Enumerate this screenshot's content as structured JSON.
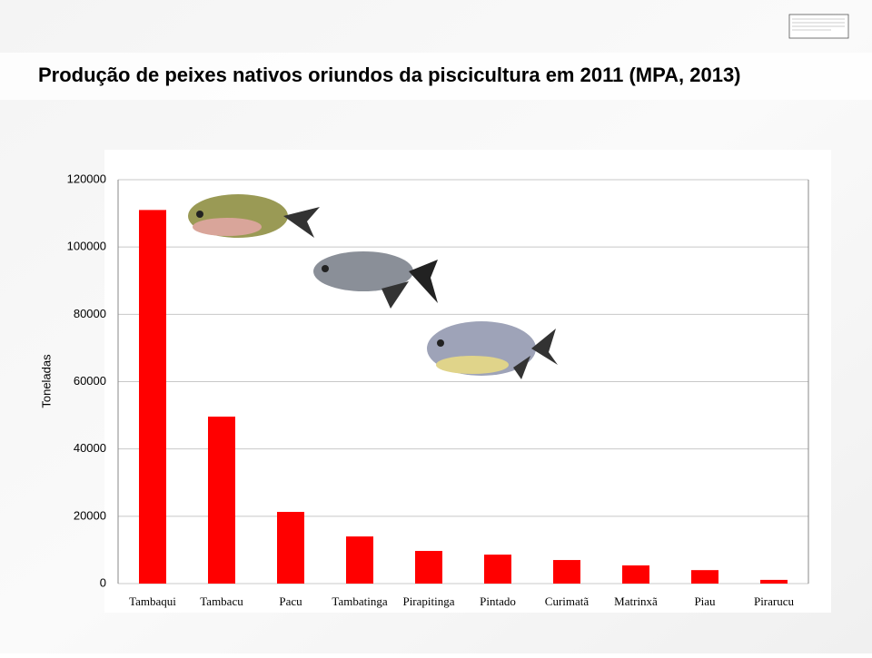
{
  "chart_data": {
    "type": "bar",
    "title": "Produção de peixes nativos oriundos da piscicultura em 2011 (MPA, 2013)",
    "y_label": "Toneladas",
    "categories": [
      "Tambaqui",
      "Tambacu",
      "Pacu",
      "Tambatinga",
      "Pirapitinga",
      "Pintado",
      "Curimatã",
      "Matrinxã",
      "Piau",
      "Pirarucu"
    ],
    "values": [
      111000,
      49600,
      21300,
      14000,
      9700,
      8600,
      7000,
      5400,
      4000,
      1100
    ],
    "color": "#ff0000",
    "ylim": [
      0,
      120000
    ],
    "yticks": [
      0,
      20000,
      40000,
      60000,
      80000,
      100000,
      120000
    ],
    "grid": true
  }
}
